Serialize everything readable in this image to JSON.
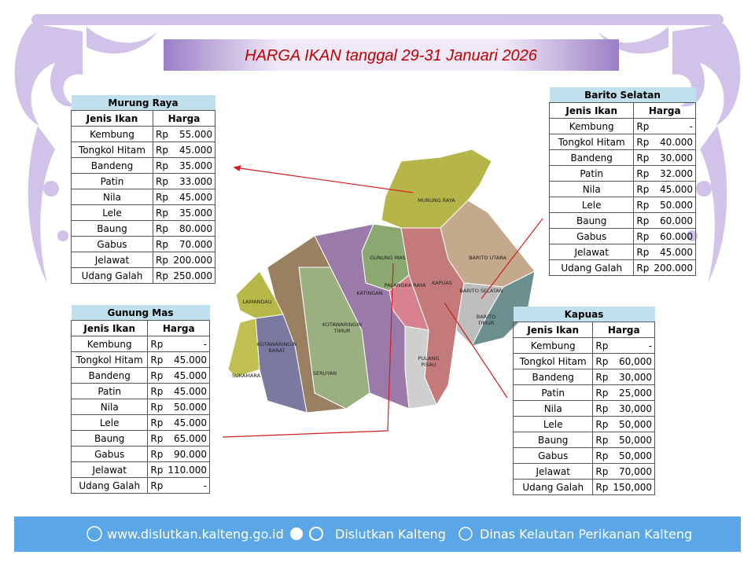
{
  "title": "HARGA IKAN  tanggal  29-31 Januari 2026",
  "tables": [
    {
      "region": "Murung Raya",
      "headers": [
        "Jenis Ikan",
        "Harga"
      ],
      "rows": [
        [
          "Kembung",
          "Rp",
          "55.000"
        ],
        [
          "Tongkol Hitam",
          "Rp",
          "45.000"
        ],
        [
          "Bandeng",
          "Rp",
          "35.000"
        ],
        [
          "Patin",
          "Rp",
          "33.000"
        ],
        [
          "Nila",
          "Rp",
          "45.000"
        ],
        [
          "Lele",
          "Rp",
          "35.000"
        ],
        [
          "Baung",
          "Rp",
          "80.000"
        ],
        [
          "Gabus",
          "Rp",
          "70.000"
        ],
        [
          "Jelawat",
          "Rp",
          "200.000"
        ],
        [
          "Udang Galah",
          "Rp",
          "250.000"
        ]
      ]
    },
    {
      "region": "Gunung Mas",
      "headers": [
        "Jenis Ikan",
        "Harga"
      ],
      "rows": [
        [
          "Kembung",
          "Rp",
          "-"
        ],
        [
          "Tongkol Hitam",
          "Rp",
          "45.000"
        ],
        [
          "Bandeng",
          "Rp",
          "45.000"
        ],
        [
          "Patin",
          "Rp",
          "45.000"
        ],
        [
          "Nila",
          "Rp",
          "50.000"
        ],
        [
          "Lele",
          "Rp",
          "45.000"
        ],
        [
          "Baung",
          "Rp",
          "65.000"
        ],
        [
          "Gabus",
          "Rp",
          "90.000"
        ],
        [
          "Jelawat",
          "Rp",
          "110.000"
        ],
        [
          "Udang Galah",
          "Rp",
          "-"
        ]
      ]
    },
    {
      "region": "Barito Selatan",
      "headers": [
        "Jenis Ikan",
        "Harga"
      ],
      "rows": [
        [
          "Kembung",
          "Rp",
          "-"
        ],
        [
          "Tongkol Hitam",
          "Rp",
          "40.000"
        ],
        [
          "Bandeng",
          "Rp",
          "30.000"
        ],
        [
          "Patin",
          "Rp",
          "32.000"
        ],
        [
          "Nila",
          "Rp",
          "45.000"
        ],
        [
          "Lele",
          "Rp",
          "50.000"
        ],
        [
          "Baung",
          "Rp",
          "60.000"
        ],
        [
          "Gabus",
          "Rp",
          "60.000"
        ],
        [
          "Jelawat",
          "Rp",
          "45.000"
        ],
        [
          "Udang Galah",
          "Rp",
          "200.000"
        ]
      ]
    },
    {
      "region": "Kapuas",
      "headers": [
        "Jenis Ikan",
        "Harga"
      ],
      "rows": [
        [
          "Kembung",
          "Rp",
          "-"
        ],
        [
          "Tongkol Hitam",
          "Rp",
          "60,000"
        ],
        [
          "Bandeng",
          "Rp",
          "30,000"
        ],
        [
          "Patin",
          "Rp",
          "25,000"
        ],
        [
          "Nila",
          "Rp",
          "30,000"
        ],
        [
          "Lele",
          "Rp",
          "50,000"
        ],
        [
          "Baung",
          "Rp",
          "50,000"
        ],
        [
          "Gabus",
          "Rp",
          "50,000"
        ],
        [
          "Jelawat",
          "Rp",
          "70,000"
        ],
        [
          "Udang Galah",
          "Rp",
          "150,000"
        ]
      ]
    }
  ],
  "map_labels": [
    "MURUNG RAYA",
    "BARITO UTARA",
    "GUNUNG MAS",
    "KAPUAS",
    "KATINGAN",
    "PALANGKA RAYA",
    "BARITO SELATAN",
    "BARITO TIMUR",
    "LAMANDAU",
    "KOTAWARINGIN TIMUR",
    "KOTAWARINGIN BARAT",
    "SERUYAN",
    "PULANG PISAU",
    "SUKAMARA"
  ],
  "footer": {
    "website": "www.dislutkan.kalteng.go.id",
    "social": "Dislutkan Kalteng",
    "facebook": "Dinas Kelautan Perikanan Kalteng"
  }
}
